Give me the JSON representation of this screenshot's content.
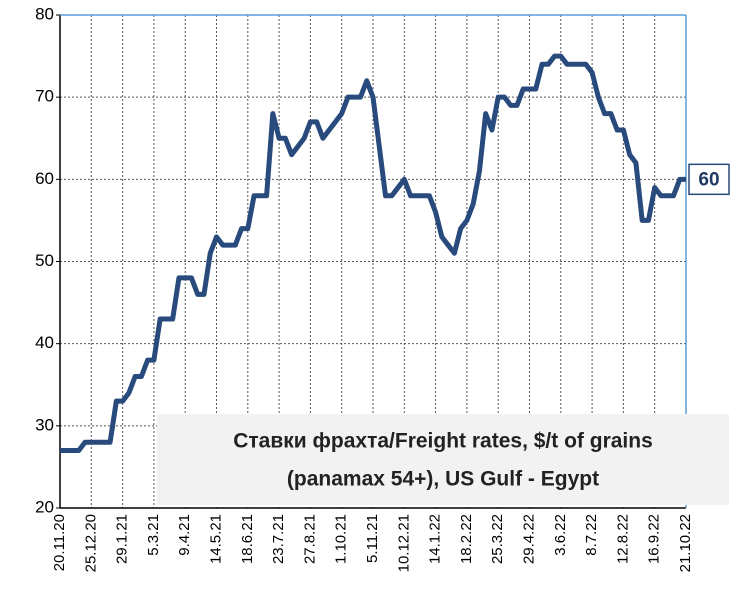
{
  "chart_data": {
    "type": "line",
    "title_lines": [
      "Ставки фрахта/Freight rates, $/t of grains",
      "(panamax 54+), US Gulf - Egypt"
    ],
    "x": [
      "20.11.20",
      null,
      null,
      null,
      null,
      "25.12.20",
      null,
      null,
      null,
      null,
      "29.1.21",
      null,
      null,
      null,
      null,
      "5.3.21",
      null,
      null,
      null,
      null,
      "9.4.21",
      null,
      null,
      null,
      null,
      "14.5.21",
      null,
      null,
      null,
      null,
      "18.6.21",
      null,
      null,
      null,
      null,
      "23.7.21",
      null,
      null,
      null,
      null,
      "27.8.21",
      null,
      null,
      null,
      null,
      "1.10.21",
      null,
      null,
      null,
      null,
      "5.11.21",
      null,
      null,
      null,
      null,
      "10.12.21",
      null,
      null,
      null,
      null,
      "14.1.22",
      null,
      null,
      null,
      null,
      "18.2.22",
      null,
      null,
      null,
      null,
      "25.3.22",
      null,
      null,
      null,
      null,
      "29.4.22",
      null,
      null,
      null,
      null,
      "3.6.22",
      null,
      null,
      null,
      null,
      "8.7.22",
      null,
      null,
      null,
      null,
      "12.8.22",
      null,
      null,
      null,
      null,
      "16.9.22",
      null,
      null,
      null,
      null,
      "21.10.22"
    ],
    "series": [
      {
        "name": "Freight rates",
        "color": "#284a7c",
        "values": [
          27,
          27,
          27,
          27,
          28,
          28,
          28,
          28,
          28,
          33,
          33,
          34,
          36,
          36,
          38,
          38,
          43,
          43,
          43,
          48,
          48,
          48,
          46,
          46,
          51,
          53,
          52,
          52,
          52,
          54,
          54,
          58,
          58,
          58,
          68,
          65,
          65,
          63,
          64,
          65,
          67,
          67,
          65,
          66,
          67,
          68,
          70,
          70,
          70,
          72,
          70,
          64,
          58,
          58,
          59,
          60,
          58,
          58,
          58,
          58,
          56,
          53,
          52,
          51,
          54,
          55,
          57,
          61,
          68,
          66,
          70,
          70,
          69,
          69,
          71,
          71,
          71,
          74,
          74,
          75,
          75,
          74,
          74,
          74,
          74,
          73,
          70,
          68,
          68,
          66,
          66,
          63,
          62,
          55,
          55,
          59,
          58,
          58,
          58,
          60,
          60
        ]
      }
    ],
    "ylim": [
      20,
      80
    ],
    "yticks": [
      20,
      30,
      40,
      50,
      60,
      70,
      80
    ],
    "grid": true
  }
}
